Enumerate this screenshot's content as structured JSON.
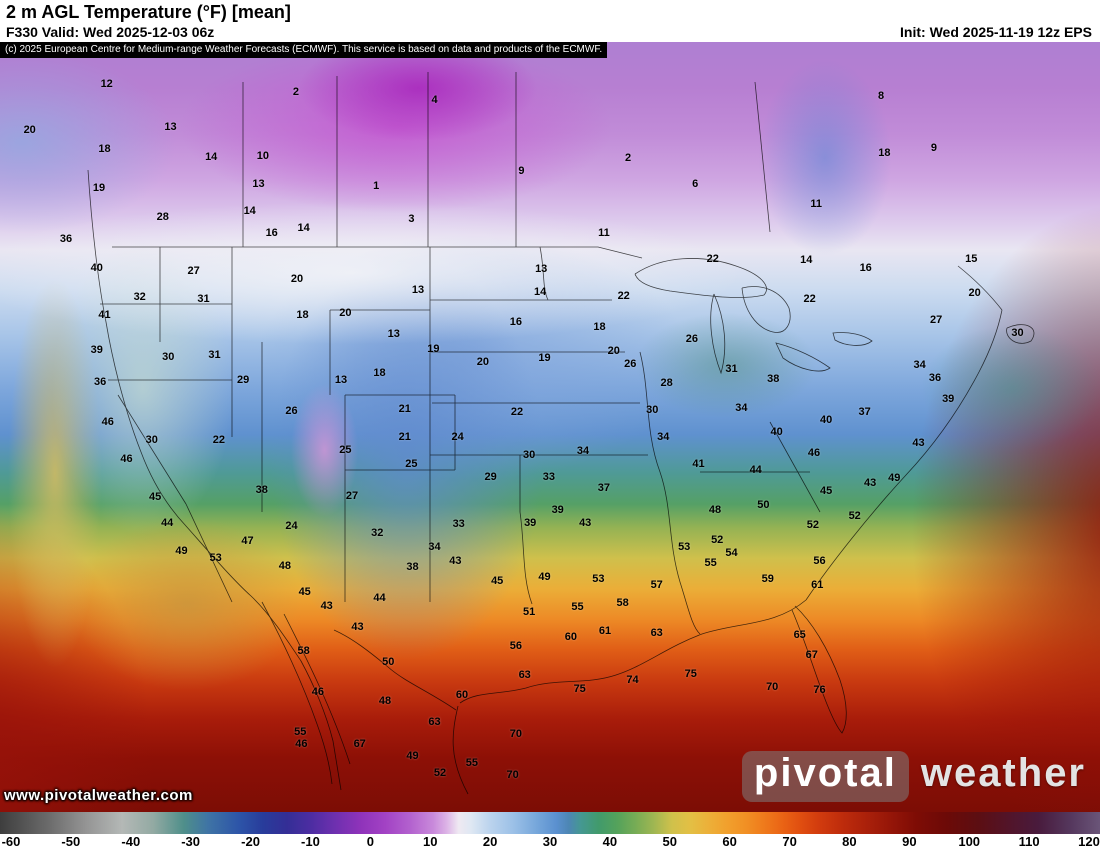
{
  "header": {
    "title": "2 m AGL Temperature (°F) [mean]",
    "valid_label": "F330 Valid: Wed 2025-12-03 06z",
    "init_label": "Init: Wed 2025-11-19 12z EPS"
  },
  "attribution": "(c) 2025 European Centre for Medium-range Weather Forecasts (ECMWF). This service is based on data and products of the ECMWF.",
  "watermark": "www.pivotalweather.com",
  "logo": {
    "primary": "pivotal",
    "secondary": "weather"
  },
  "colorbar": {
    "units": "°F",
    "ticks": [
      -60,
      -50,
      -40,
      -30,
      -20,
      -10,
      0,
      10,
      20,
      30,
      40,
      50,
      60,
      70,
      80,
      90,
      100,
      110,
      120
    ],
    "stops": [
      {
        "t": -60,
        "c": "#3e3e3e"
      },
      {
        "t": -52,
        "c": "#6b6b6b"
      },
      {
        "t": -46,
        "c": "#949494"
      },
      {
        "t": -40,
        "c": "#b4b8b6"
      },
      {
        "t": -35,
        "c": "#93aaa3"
      },
      {
        "t": -30,
        "c": "#4f8f8a"
      },
      {
        "t": -26,
        "c": "#3f74a5"
      },
      {
        "t": -21,
        "c": "#2d55a8"
      },
      {
        "t": -17,
        "c": "#283c9b"
      },
      {
        "t": -13,
        "c": "#342e96"
      },
      {
        "t": -9,
        "c": "#4d2da2"
      },
      {
        "t": -5,
        "c": "#7030b0"
      },
      {
        "t": -1,
        "c": "#8f33ba"
      },
      {
        "t": 3,
        "c": "#a242c4"
      },
      {
        "t": 7,
        "c": "#b260ce"
      },
      {
        "t": 11,
        "c": "#c98adb"
      },
      {
        "t": 13,
        "c": "#dcb3e6"
      },
      {
        "t": 15,
        "c": "#efe9f2"
      },
      {
        "t": 17,
        "c": "#dfe8f3"
      },
      {
        "t": 20,
        "c": "#bed5ee"
      },
      {
        "t": 24,
        "c": "#9bc0e7"
      },
      {
        "t": 28,
        "c": "#74a5da"
      },
      {
        "t": 31,
        "c": "#5a90cf"
      },
      {
        "t": 33,
        "c": "#4d86b4"
      },
      {
        "t": 35,
        "c": "#459892"
      },
      {
        "t": 38,
        "c": "#419a6c"
      },
      {
        "t": 41,
        "c": "#54a25b"
      },
      {
        "t": 44,
        "c": "#77ac55"
      },
      {
        "t": 47,
        "c": "#9eb652"
      },
      {
        "t": 50,
        "c": "#d0c14b"
      },
      {
        "t": 53,
        "c": "#e3bf44"
      },
      {
        "t": 56,
        "c": "#ecb039"
      },
      {
        "t": 59,
        "c": "#f1a02d"
      },
      {
        "t": 62,
        "c": "#f19024"
      },
      {
        "t": 65,
        "c": "#ef7b1c"
      },
      {
        "t": 68,
        "c": "#ea6415"
      },
      {
        "t": 71,
        "c": "#e04e10"
      },
      {
        "t": 74,
        "c": "#d23c0e"
      },
      {
        "t": 78,
        "c": "#bd2b0c"
      },
      {
        "t": 82,
        "c": "#a9200a"
      },
      {
        "t": 86,
        "c": "#941508"
      },
      {
        "t": 90,
        "c": "#7e0c05"
      },
      {
        "t": 95,
        "c": "#6c0a07"
      },
      {
        "t": 100,
        "c": "#5c0e12"
      },
      {
        "t": 105,
        "c": "#521429"
      },
      {
        "t": 110,
        "c": "#491b3d"
      },
      {
        "t": 115,
        "c": "#54365c"
      },
      {
        "t": 120,
        "c": "#6a5578"
      }
    ]
  },
  "map_labels": [
    [
      12,
      9.7,
      5.5
    ],
    [
      2,
      26.9,
      6.5
    ],
    [
      4,
      39.5,
      7.5
    ],
    [
      8,
      80.1,
      7.0
    ],
    [
      20,
      2.7,
      11.4
    ],
    [
      13,
      15.5,
      11.0
    ],
    [
      18,
      9.5,
      13.9
    ],
    [
      14,
      19.2,
      14.9
    ],
    [
      10,
      23.9,
      14.8
    ],
    [
      2,
      57.1,
      15.1
    ],
    [
      18,
      80.4,
      14.4
    ],
    [
      9,
      84.9,
      13.8
    ],
    [
      19,
      9.0,
      19.0
    ],
    [
      13,
      23.5,
      18.4
    ],
    [
      1,
      34.2,
      18.7
    ],
    [
      9,
      47.4,
      16.8
    ],
    [
      6,
      63.2,
      18.4
    ],
    [
      11,
      74.2,
      21.0
    ],
    [
      28,
      14.8,
      22.7
    ],
    [
      14,
      22.7,
      21.9
    ],
    [
      3,
      37.4,
      23.0
    ],
    [
      16,
      24.7,
      24.8
    ],
    [
      14,
      27.6,
      24.2
    ],
    [
      11,
      54.9,
      24.8
    ],
    [
      36,
      6.0,
      25.6
    ],
    [
      40,
      8.8,
      29.4
    ],
    [
      27,
      17.6,
      29.7
    ],
    [
      20,
      27.0,
      30.8
    ],
    [
      13,
      49.2,
      29.5
    ],
    [
      13,
      38.0,
      32.2
    ],
    [
      22,
      64.8,
      28.2
    ],
    [
      14,
      73.3,
      28.3
    ],
    [
      16,
      78.7,
      29.4
    ],
    [
      15,
      88.3,
      28.2
    ],
    [
      32,
      12.7,
      33.1
    ],
    [
      31,
      18.5,
      33.4
    ],
    [
      18,
      27.5,
      35.5
    ],
    [
      20,
      31.4,
      35.2
    ],
    [
      14,
      49.1,
      32.5
    ],
    [
      22,
      56.7,
      33.0
    ],
    [
      22,
      73.6,
      33.4
    ],
    [
      20,
      88.6,
      32.6
    ],
    [
      41,
      9.5,
      35.5
    ],
    [
      16,
      46.9,
      36.4
    ],
    [
      18,
      54.5,
      37.0
    ],
    [
      27,
      85.1,
      36.1
    ],
    [
      30,
      92.5,
      37.8
    ],
    [
      39,
      8.8,
      40.0
    ],
    [
      30,
      15.3,
      40.9
    ],
    [
      31,
      19.5,
      40.6
    ],
    [
      13,
      35.8,
      37.9
    ],
    [
      19,
      39.4,
      39.9
    ],
    [
      20,
      43.9,
      41.6
    ],
    [
      19,
      49.5,
      41.0
    ],
    [
      20,
      55.8,
      40.1
    ],
    [
      26,
      62.9,
      38.6
    ],
    [
      31,
      66.5,
      42.5
    ],
    [
      26,
      57.3,
      41.8
    ],
    [
      36,
      9.1,
      44.2
    ],
    [
      29,
      22.1,
      43.9
    ],
    [
      13,
      31.0,
      43.9
    ],
    [
      18,
      34.5,
      43.0
    ],
    [
      28,
      60.6,
      44.3
    ],
    [
      38,
      70.3,
      43.8
    ],
    [
      34,
      83.6,
      41.9
    ],
    [
      36,
      85.0,
      43.6
    ],
    [
      39,
      86.2,
      46.4
    ],
    [
      37,
      78.6,
      48.1
    ],
    [
      46,
      9.8,
      49.4
    ],
    [
      26,
      26.5,
      47.9
    ],
    [
      21,
      36.8,
      47.7
    ],
    [
      22,
      47.0,
      48.1
    ],
    [
      30,
      59.3,
      47.8
    ],
    [
      34,
      67.4,
      47.5
    ],
    [
      40,
      75.1,
      49.1
    ],
    [
      30,
      13.8,
      51.7
    ],
    [
      22,
      19.9,
      51.7
    ],
    [
      21,
      36.8,
      51.3
    ],
    [
      24,
      41.6,
      51.3
    ],
    [
      30,
      48.1,
      53.6
    ],
    [
      34,
      60.3,
      51.3
    ],
    [
      34,
      53.0,
      53.1
    ],
    [
      40,
      70.6,
      50.6
    ],
    [
      43,
      83.5,
      52.1
    ],
    [
      46,
      11.5,
      54.2
    ],
    [
      25,
      31.4,
      53.0
    ],
    [
      25,
      37.4,
      54.8
    ],
    [
      29,
      44.6,
      56.5
    ],
    [
      33,
      49.9,
      56.5
    ],
    [
      37,
      54.9,
      57.9
    ],
    [
      41,
      63.5,
      54.8
    ],
    [
      44,
      68.7,
      55.6
    ],
    [
      46,
      74.0,
      53.4
    ],
    [
      49,
      81.3,
      56.6
    ],
    [
      45,
      14.1,
      59.1
    ],
    [
      38,
      23.8,
      58.2
    ],
    [
      27,
      32.0,
      59.0
    ],
    [
      45,
      75.1,
      58.3
    ],
    [
      43,
      79.1,
      57.3
    ],
    [
      44,
      15.2,
      62.5
    ],
    [
      24,
      26.5,
      62.9
    ],
    [
      32,
      34.3,
      63.8
    ],
    [
      33,
      41.7,
      62.6
    ],
    [
      39,
      48.2,
      62.5
    ],
    [
      39,
      50.7,
      60.8
    ],
    [
      43,
      53.2,
      62.5
    ],
    [
      48,
      65.0,
      60.8
    ],
    [
      50,
      69.4,
      60.1
    ],
    [
      52,
      77.7,
      61.6
    ],
    [
      52,
      73.9,
      62.7
    ],
    [
      49,
      16.5,
      66.1
    ],
    [
      53,
      19.6,
      67.0
    ],
    [
      47,
      22.5,
      64.8
    ],
    [
      34,
      39.5,
      65.6
    ],
    [
      43,
      41.4,
      67.4
    ],
    [
      53,
      62.2,
      65.6
    ],
    [
      52,
      65.2,
      64.7
    ],
    [
      55,
      64.6,
      67.7
    ],
    [
      54,
      66.5,
      66.4
    ],
    [
      56,
      74.5,
      67.4
    ],
    [
      48,
      25.9,
      68.1
    ],
    [
      38,
      37.5,
      68.2
    ],
    [
      45,
      45.2,
      70.0
    ],
    [
      49,
      49.5,
      69.5
    ],
    [
      53,
      54.4,
      69.7
    ],
    [
      57,
      59.7,
      70.5
    ],
    [
      59,
      69.8,
      69.7
    ],
    [
      61,
      74.3,
      70.5
    ],
    [
      45,
      27.7,
      71.4
    ],
    [
      44,
      34.5,
      72.2
    ],
    [
      43,
      29.7,
      73.2
    ],
    [
      51,
      48.1,
      74.0
    ],
    [
      55,
      52.5,
      73.4
    ],
    [
      58,
      56.6,
      72.9
    ],
    [
      61,
      55.0,
      76.5
    ],
    [
      63,
      59.7,
      76.8
    ],
    [
      65,
      72.7,
      77.0
    ],
    [
      43,
      32.5,
      76.0
    ],
    [
      58,
      27.6,
      79.1
    ],
    [
      56,
      46.9,
      78.4
    ],
    [
      60,
      51.9,
      77.3
    ],
    [
      67,
      73.8,
      79.6
    ],
    [
      50,
      35.3,
      80.5
    ],
    [
      60,
      42.0,
      84.8
    ],
    [
      63,
      47.7,
      82.2
    ],
    [
      75,
      52.7,
      84.0
    ],
    [
      74,
      57.5,
      82.9
    ],
    [
      75,
      62.8,
      82.1
    ],
    [
      70,
      70.2,
      83.8
    ],
    [
      76,
      74.5,
      84.2
    ],
    [
      46,
      28.9,
      84.4
    ],
    [
      48,
      35.0,
      85.6
    ],
    [
      55,
      27.3,
      89.6
    ],
    [
      63,
      39.5,
      88.3
    ],
    [
      70,
      46.9,
      89.9
    ],
    [
      46,
      27.4,
      91.2
    ],
    [
      67,
      32.7,
      91.2
    ],
    [
      49,
      37.5,
      92.7
    ],
    [
      55,
      42.9,
      93.6
    ],
    [
      52,
      40.0,
      94.9
    ],
    [
      70,
      46.6,
      95.2
    ]
  ]
}
